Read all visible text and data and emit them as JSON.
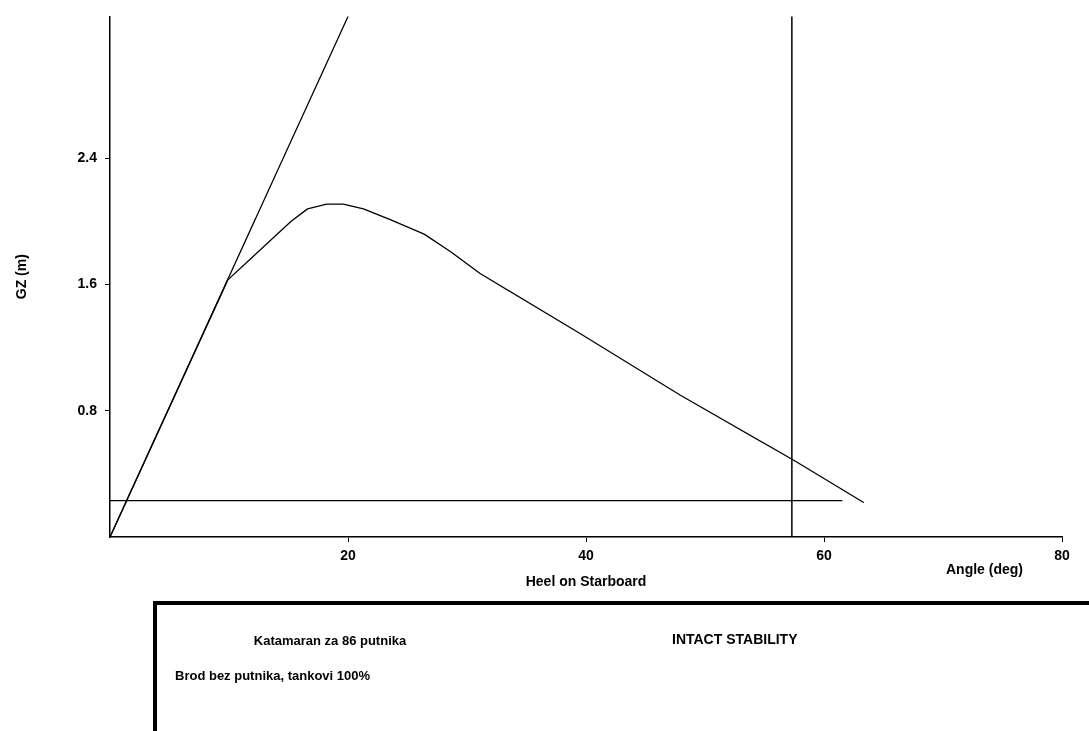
{
  "chart_data": {
    "type": "line",
    "title": "Katamaran za 86 putnika",
    "subtitle": "INTACT STABILITY",
    "xlabel": "Heel on Starboard",
    "ylabel": "GZ (m)",
    "annotations": [
      "Angle (deg)",
      "Brod bez putnika, tankovi 100%"
    ],
    "x": [
      0,
      9.9,
      15.2,
      16.6,
      18.2,
      19.6,
      21.3,
      23.6,
      26.4,
      28.6,
      31.1,
      39.5,
      47.9,
      57.6,
      63.3
    ],
    "series": [
      {
        "color": "#000000",
        "values": [
          0,
          1.63,
          2.0,
          2.08,
          2.11,
          2.11,
          2.08,
          2.01,
          1.92,
          1.81,
          1.67,
          1.29,
          0.9,
          0.48,
          0.22
        ]
      },
      {
        "type": "line",
        "color": "#000000",
        "x": [
          0,
          20
        ],
        "values": [
          0,
          3.3
        ]
      },
      {
        "type": "line",
        "color": "#000000",
        "x": [
          0,
          61.5
        ],
        "values": [
          0.23,
          0.23
        ]
      }
    ],
    "xlim": [
      0,
      80
    ],
    "xticks": [
      20,
      40,
      60,
      80
    ],
    "ylim": [
      0,
      3.3
    ],
    "yticks": [
      0.8,
      1.6,
      2.4
    ],
    "ref_lines": [
      {
        "axis": "x",
        "value": 57.3,
        "color": "#000000"
      }
    ],
    "grid": false,
    "legend": false,
    "marker": "none",
    "line_style": "solid"
  }
}
